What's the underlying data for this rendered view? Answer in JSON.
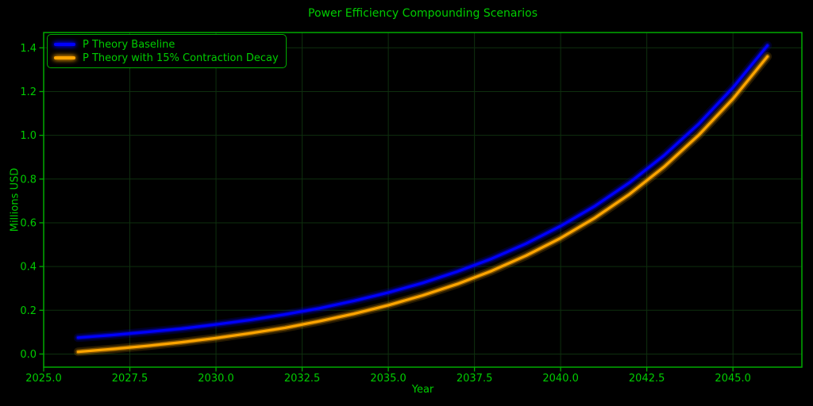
{
  "figure": {
    "title": "Power Efficiency Compounding Scenarios",
    "xlabel": "Year",
    "ylabel": "Millions USD"
  },
  "legend": {
    "items": [
      {
        "label": "P Theory Baseline",
        "color": "#0000ff"
      },
      {
        "label": "P Theory with 15% Contraction Decay",
        "color": "#ffa500"
      }
    ]
  },
  "chart_data": {
    "type": "line",
    "title": "Power Efficiency Compounding Scenarios",
    "xlabel": "Year",
    "ylabel": "Millions USD",
    "xlim": [
      2025,
      2047
    ],
    "ylim": [
      -0.06,
      1.47
    ],
    "x_ticks": [
      2025.0,
      2027.5,
      2030.0,
      2032.5,
      2035.0,
      2037.5,
      2040.0,
      2042.5,
      2045.0
    ],
    "x_tick_labels": [
      "2025.0",
      "2027.5",
      "2030.0",
      "2032.5",
      "2035.0",
      "2037.5",
      "2040.0",
      "2042.5",
      "2045.0"
    ],
    "y_ticks": [
      0.0,
      0.2,
      0.4,
      0.6,
      0.8,
      1.0,
      1.2,
      1.4
    ],
    "y_tick_labels": [
      "0.0",
      "0.2",
      "0.4",
      "0.6",
      "0.8",
      "1.0",
      "1.2",
      "1.4"
    ],
    "grid": true,
    "legend_position": "upper left",
    "x": [
      2026,
      2027,
      2028,
      2029,
      2030,
      2031,
      2032,
      2033,
      2034,
      2035,
      2036,
      2037,
      2038,
      2039,
      2040,
      2041,
      2042,
      2043,
      2044,
      2045,
      2046
    ],
    "series": [
      {
        "name": "P Theory Baseline",
        "color": "#0000ff",
        "values": [
          0.075,
          0.087,
          0.101,
          0.116,
          0.135,
          0.156,
          0.181,
          0.209,
          0.243,
          0.281,
          0.325,
          0.377,
          0.436,
          0.505,
          0.585,
          0.677,
          0.784,
          0.908,
          1.051,
          1.218,
          1.41
        ]
      },
      {
        "name": "P Theory with 15% Contraction Decay",
        "color": "#ffa500",
        "values": [
          0.01,
          0.023,
          0.037,
          0.054,
          0.073,
          0.095,
          0.12,
          0.15,
          0.184,
          0.223,
          0.268,
          0.32,
          0.38,
          0.45,
          0.53,
          0.623,
          0.731,
          0.856,
          1.0,
          1.167,
          1.36
        ]
      }
    ],
    "colors": {
      "background": "#000000",
      "text": "#00cc00",
      "spine": "#00aa00",
      "grid": "#0e2f0e"
    }
  }
}
